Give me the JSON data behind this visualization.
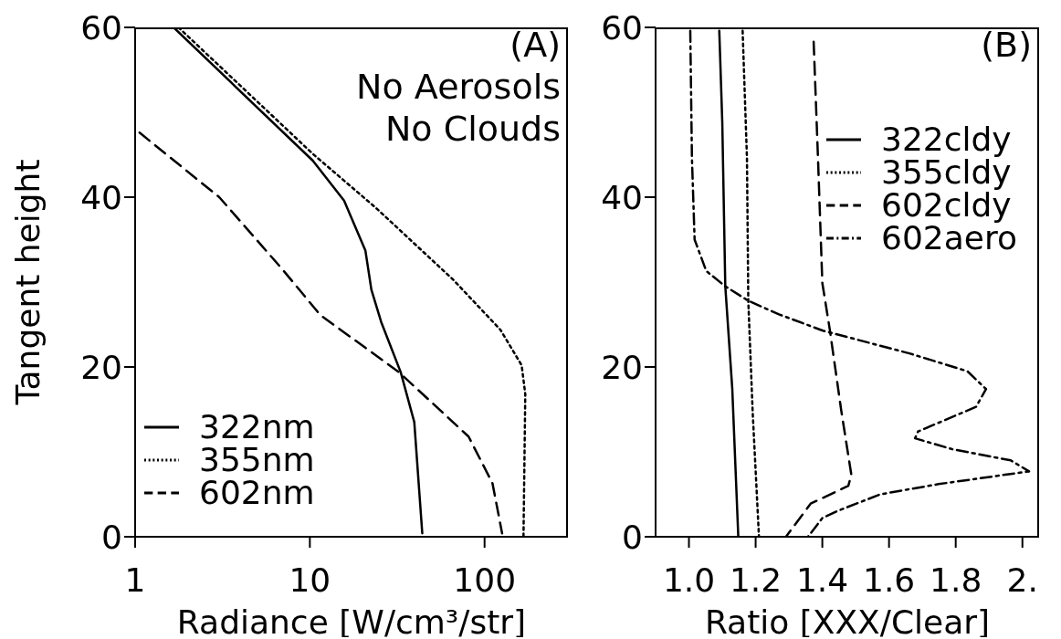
{
  "chart_data": [
    {
      "type": "line",
      "ylabel": "Tangent height",
      "xlabel": "Radiance [W/cm³/str]",
      "log": "x",
      "xlim": [
        1,
        300
      ],
      "xticks": [
        1,
        10,
        100
      ],
      "ylim": [
        0,
        60
      ],
      "yticks": [
        0,
        20,
        40,
        60
      ],
      "legend": "bottom left",
      "annotations": [
        "(A)",
        "No Aerosols",
        "No Clouds"
      ],
      "series": [
        {
          "name": "322nm",
          "color": "#000000",
          "line_style": "solid",
          "x": [
            1.66,
            10.4,
            15.7,
            20.8,
            22.5,
            25.6,
            33.1,
            39.6,
            44
          ],
          "values": [
            60,
            44.3,
            39.6,
            33.7,
            29.1,
            25.3,
            19.4,
            13.5,
            0.4
          ]
        },
        {
          "name": "355nm",
          "color": "#000000",
          "line_style": "dotted",
          "x": [
            1.77,
            10.4,
            23.7,
            66,
            123,
            163,
            171,
            167
          ],
          "values": [
            60,
            45.1,
            38.8,
            30.3,
            24.4,
            20.2,
            16.8,
            0
          ]
        },
        {
          "name": "602nm",
          "color": "#000000",
          "line_style": "dashed",
          "x": [
            1.06,
            3.03,
            6.9,
            11.5,
            32.3,
            81,
            111,
            126
          ],
          "values": [
            47.6,
            40,
            31.6,
            26.1,
            19.4,
            11.8,
            6.3,
            0.4
          ]
        }
      ]
    },
    {
      "type": "line",
      "xlabel": "Ratio [XXX/Clear]",
      "xlim": [
        0.9,
        2.05
      ],
      "xticks": [
        {
          "value": 1.0,
          "label": "1.0"
        },
        1.2,
        1.4,
        1.6,
        1.8,
        {
          "value": 2.0,
          "label": "2."
        }
      ],
      "ylim": [
        0,
        60
      ],
      "yticks": [
        0,
        20,
        40,
        60
      ],
      "legend": "top right",
      "annotations": [
        "(B)"
      ],
      "series": [
        {
          "name": "322cldy",
          "color": "#000000",
          "line_style": "solid",
          "x": [
            1.091,
            1.1,
            1.109,
            1.13,
            1.148
          ],
          "values": [
            59.6,
            48.8,
            29.5,
            17.4,
            0
          ]
        },
        {
          "name": "355cldy",
          "color": "#000000",
          "line_style": "dotted",
          "x": [
            1.161,
            1.174,
            1.178,
            1.191,
            1.21
          ],
          "values": [
            59.6,
            44.6,
            27.8,
            14.8,
            0
          ]
        },
        {
          "name": "602cldy",
          "color": "#000000",
          "line_style": "dashed",
          "x": [
            1.374,
            1.387,
            1.4,
            1.422,
            1.457,
            1.487,
            1.478,
            1.365,
            1.291
          ],
          "values": [
            58.3,
            44.6,
            29.9,
            24.5,
            14.8,
            7.3,
            6.0,
            3.9,
            0
          ]
        },
        {
          "name": "602aero",
          "color": "#000000",
          "line_style": "dashdot",
          "x": [
            1.004,
            1.009,
            1.017,
            1.052,
            1.109,
            1.178,
            1.27,
            1.4,
            1.661,
            1.835,
            1.891,
            1.861,
            1.687,
            1.678,
            1.791,
            1.965,
            2.02,
            1.748,
            1.574,
            1.443,
            1.4,
            1.357
          ],
          "values": [
            59.6,
            44.6,
            35,
            31.3,
            29.5,
            27.8,
            26.2,
            24.3,
            21.6,
            19.5,
            17.4,
            15.3,
            12.4,
            11.6,
            10.3,
            9.0,
            7.7,
            6.2,
            5.0,
            3.0,
            2.2,
            0
          ]
        }
      ]
    }
  ]
}
